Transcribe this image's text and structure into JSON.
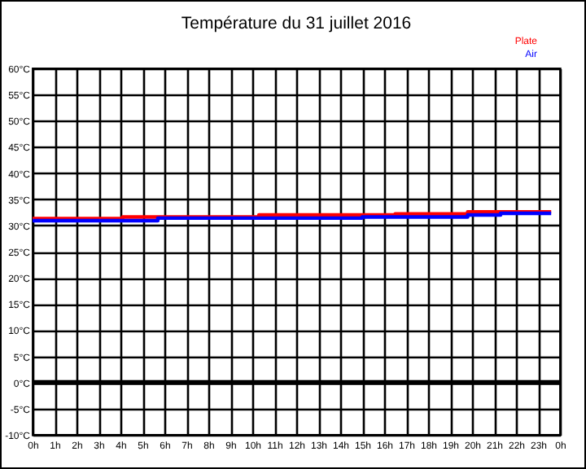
{
  "chart_data": {
    "type": "step",
    "title": "Température du 31 juillet 2016",
    "series": [
      {
        "name": "Plate",
        "color": "#ff0000",
        "x": [
          "2016-07-31T00:00",
          "2016-07-31T04:06",
          "2016-07-31T10:18",
          "2016-07-31T16:30",
          "2016-07-31T19:48",
          "2016-07-31T23:36"
        ],
        "values": [
          31.3,
          31.6,
          32.0,
          32.2,
          32.6,
          32.6
        ]
      },
      {
        "name": "Air",
        "color": "#0000ff",
        "x": [
          "2016-07-31T00:00",
          "2016-07-31T05:42",
          "2016-07-31T15:00",
          "2016-07-31T19:48",
          "2016-07-31T21:18",
          "2016-07-31T23:36"
        ],
        "values": [
          30.9,
          31.4,
          31.6,
          32.0,
          32.3,
          32.3
        ]
      }
    ],
    "xlim": [
      "2016-07-31T00:00",
      "2016-08-01T00:00"
    ],
    "xticks": [
      {
        "value": "2016-07-31T00:00",
        "label": "0h"
      },
      {
        "value": "2016-07-31T01:00",
        "label": "1h"
      },
      {
        "value": "2016-07-31T02:00",
        "label": "2h"
      },
      {
        "value": "2016-07-31T03:00",
        "label": "3h"
      },
      {
        "value": "2016-07-31T04:00",
        "label": "4h"
      },
      {
        "value": "2016-07-31T05:00",
        "label": "5h"
      },
      {
        "value": "2016-07-31T06:00",
        "label": "6h"
      },
      {
        "value": "2016-07-31T07:00",
        "label": "7h"
      },
      {
        "value": "2016-07-31T08:00",
        "label": "8h"
      },
      {
        "value": "2016-07-31T09:00",
        "label": "9h"
      },
      {
        "value": "2016-07-31T10:00",
        "label": "10h"
      },
      {
        "value": "2016-07-31T11:00",
        "label": "11h"
      },
      {
        "value": "2016-07-31T12:00",
        "label": "12h"
      },
      {
        "value": "2016-07-31T13:00",
        "label": "13h"
      },
      {
        "value": "2016-07-31T14:00",
        "label": "14h"
      },
      {
        "value": "2016-07-31T15:00",
        "label": "15h"
      },
      {
        "value": "2016-07-31T16:00",
        "label": "16h"
      },
      {
        "value": "2016-07-31T17:00",
        "label": "17h"
      },
      {
        "value": "2016-07-31T18:00",
        "label": "18h"
      },
      {
        "value": "2016-07-31T19:00",
        "label": "19h"
      },
      {
        "value": "2016-07-31T20:00",
        "label": "20h"
      },
      {
        "value": "2016-07-31T21:00",
        "label": "21h"
      },
      {
        "value": "2016-07-31T22:00",
        "label": "22h"
      },
      {
        "value": "2016-07-31T23:00",
        "label": "23h"
      },
      {
        "value": "2016-08-01T00:00",
        "label": "0h"
      }
    ],
    "ylim": [
      -10,
      60
    ],
    "yticks": [
      {
        "value": -10,
        "label": "-10°C"
      },
      {
        "value": -5,
        "label": "-5°C"
      },
      {
        "value": 0,
        "label": "0°C"
      },
      {
        "value": 5,
        "label": "5°C"
      },
      {
        "value": 10,
        "label": "10°C"
      },
      {
        "value": 15,
        "label": "15°C"
      },
      {
        "value": 20,
        "label": "20°C"
      },
      {
        "value": 25,
        "label": "25°C"
      },
      {
        "value": 30,
        "label": "30°C"
      },
      {
        "value": 35,
        "label": "35°C"
      },
      {
        "value": 40,
        "label": "40°C"
      },
      {
        "value": 45,
        "label": "45°C"
      },
      {
        "value": 50,
        "label": "50°C"
      },
      {
        "value": 55,
        "label": "55°C"
      },
      {
        "value": 60,
        "label": "60°C"
      }
    ],
    "ref_lines": [
      {
        "axis": "y",
        "value": 0,
        "color": "#000000"
      }
    ],
    "grid": true,
    "legend": "top right"
  }
}
